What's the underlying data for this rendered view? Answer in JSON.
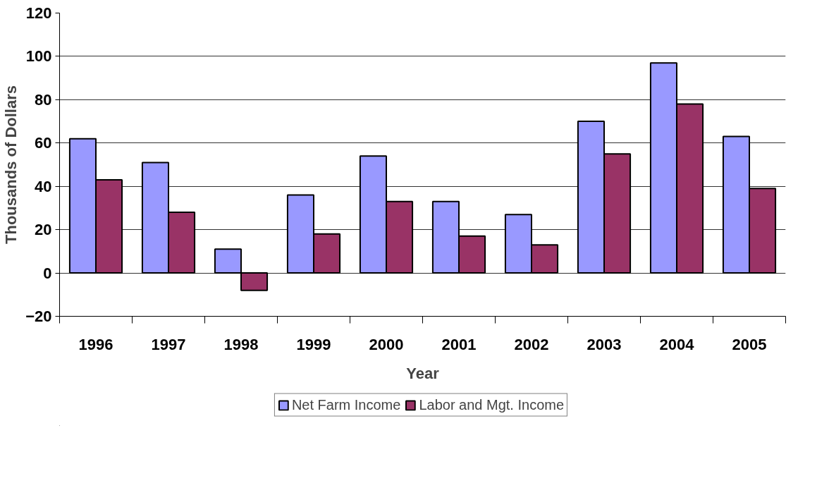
{
  "chart_data": {
    "type": "bar",
    "xlabel": "Year",
    "ylabel": "Thousands of Dollars",
    "categories": [
      "1996",
      "1997",
      "1998",
      "1999",
      "2000",
      "2001",
      "2002",
      "2003",
      "2004",
      "2005"
    ],
    "series": [
      {
        "name": "Net Farm Income",
        "color": "#9999ff",
        "values": [
          62,
          51,
          11,
          36,
          54,
          33,
          27,
          70,
          97,
          63
        ]
      },
      {
        "name": "Labor and Mgt. Income",
        "color": "#993366",
        "values": [
          43,
          28,
          -8,
          18,
          33,
          17,
          13,
          55,
          78,
          39
        ]
      }
    ],
    "ylim": [
      -20,
      120
    ],
    "yticks": [
      -20,
      0,
      20,
      40,
      60,
      80,
      100,
      120
    ],
    "grid": "y",
    "legend": "bottom"
  }
}
